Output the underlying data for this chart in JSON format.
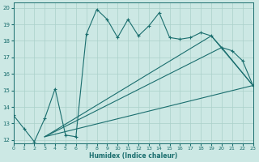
{
  "xlabel": "Humidex (Indice chaleur)",
  "bg_color": "#cce8e4",
  "grid_color": "#aad0ca",
  "line_color": "#1a6e6e",
  "xlim": [
    0,
    23
  ],
  "ylim": [
    11.8,
    20.3
  ],
  "xticks": [
    0,
    1,
    2,
    3,
    4,
    5,
    6,
    7,
    8,
    9,
    10,
    11,
    12,
    13,
    14,
    15,
    16,
    17,
    18,
    19,
    20,
    21,
    22,
    23
  ],
  "yticks": [
    12,
    13,
    14,
    15,
    16,
    17,
    18,
    19,
    20
  ],
  "line1_x": [
    0,
    1,
    2,
    3,
    4,
    5,
    6,
    7,
    8,
    9,
    10,
    11,
    12,
    13,
    14,
    15,
    16,
    17,
    18,
    19,
    20,
    21,
    22,
    23
  ],
  "line1_y": [
    13.5,
    12.7,
    11.9,
    13.3,
    15.1,
    12.3,
    12.2,
    18.4,
    19.9,
    19.3,
    18.2,
    19.3,
    18.3,
    18.9,
    19.7,
    18.2,
    18.1,
    18.2,
    18.5,
    18.3,
    17.6,
    17.4,
    16.8,
    15.3
  ],
  "line2_x": [
    3,
    23
  ],
  "line2_y": [
    12.2,
    15.3
  ],
  "line3_x": [
    3,
    20,
    23
  ],
  "line3_y": [
    12.2,
    17.6,
    15.3
  ],
  "line4_x": [
    3,
    19,
    23
  ],
  "line4_y": [
    12.2,
    18.3,
    15.3
  ]
}
